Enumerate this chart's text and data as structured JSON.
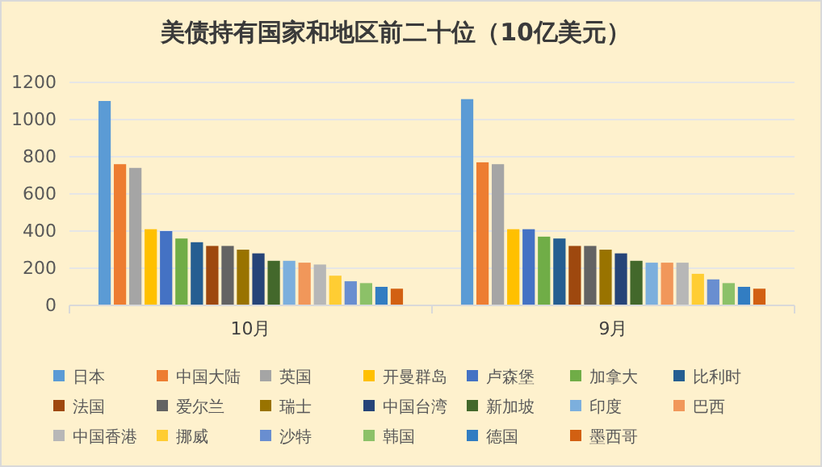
{
  "chart_data": {
    "type": "bar",
    "title": "美债持有国家和地区前二十位（10亿美元）",
    "categories": [
      "10月",
      "9月"
    ],
    "ylim": [
      0,
      1200
    ],
    "yticks": [
      0,
      200,
      400,
      600,
      800,
      1000,
      1200
    ],
    "grid": "y",
    "legend": "bottom",
    "series": [
      {
        "name": "日本",
        "color": "#5b9bd5",
        "values": [
          1100,
          1110
        ]
      },
      {
        "name": "中国大陆",
        "color": "#ed7d31",
        "values": [
          760,
          770
        ]
      },
      {
        "name": "英国",
        "color": "#a5a5a5",
        "values": [
          740,
          760
        ]
      },
      {
        "name": "开曼群岛",
        "color": "#ffc000",
        "values": [
          410,
          410
        ]
      },
      {
        "name": "卢森堡",
        "color": "#4472c4",
        "values": [
          400,
          410
        ]
      },
      {
        "name": "加拿大",
        "color": "#70ad47",
        "values": [
          360,
          370
        ]
      },
      {
        "name": "比利时",
        "color": "#255e91",
        "values": [
          340,
          360
        ]
      },
      {
        "name": "法国",
        "color": "#9e480e",
        "values": [
          320,
          320
        ]
      },
      {
        "name": "爱尔兰",
        "color": "#636363",
        "values": [
          320,
          320
        ]
      },
      {
        "name": "瑞士",
        "color": "#997300",
        "values": [
          300,
          300
        ]
      },
      {
        "name": "中国台湾",
        "color": "#264478",
        "values": [
          280,
          280
        ]
      },
      {
        "name": "新加坡",
        "color": "#43682b",
        "values": [
          240,
          240
        ]
      },
      {
        "name": "印度",
        "color": "#7cafdd",
        "values": [
          240,
          230
        ]
      },
      {
        "name": "巴西",
        "color": "#f1975a",
        "values": [
          230,
          230
        ]
      },
      {
        "name": "中国香港",
        "color": "#b7b7b7",
        "values": [
          220,
          230
        ]
      },
      {
        "name": "挪威",
        "color": "#ffcd33",
        "values": [
          160,
          170
        ]
      },
      {
        "name": "沙特",
        "color": "#698ed0",
        "values": [
          130,
          140
        ]
      },
      {
        "name": "韩国",
        "color": "#8cc168",
        "values": [
          120,
          120
        ]
      },
      {
        "name": "德国",
        "color": "#327dc2",
        "values": [
          100,
          100
        ]
      },
      {
        "name": "墨西哥",
        "color": "#d26012",
        "values": [
          90,
          90
        ]
      }
    ]
  }
}
